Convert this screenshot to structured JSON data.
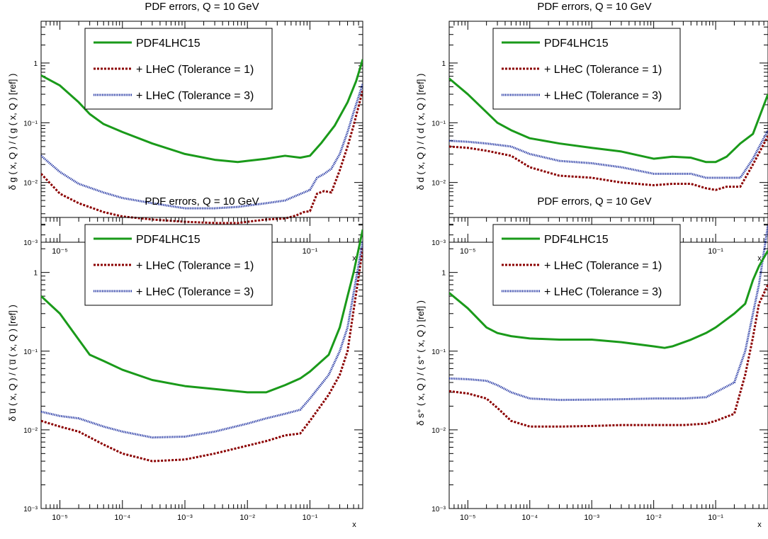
{
  "styles": {
    "pdf4lhc15": {
      "color": "#1a9a1a",
      "dash": "none",
      "width": 3
    },
    "tol1": {
      "color": "#8b0000",
      "dash": "3,2",
      "width": 3
    },
    "tol3": {
      "color": "#1c2fa0",
      "dash": "1.2,1.2",
      "width": 3
    }
  },
  "chart_data": [
    {
      "type": "line",
      "title": "PDF errors, Q = 10 GeV",
      "xlabel": "x",
      "ylabel": "δ g ( x, Q ) / ( g ( x, Q ) [ref] )",
      "xscale": "log",
      "yscale": "log",
      "xlim": [
        5e-06,
        0.7
      ],
      "ylim": [
        0.001,
        5
      ],
      "xticks": [
        "10⁻⁵",
        "10⁻⁴",
        "10⁻³",
        "10⁻²",
        "10⁻¹"
      ],
      "yticks": [
        "10⁻³",
        "10⁻²",
        "10⁻¹",
        "1"
      ],
      "legend": [
        "PDF4LHC15",
        "+ LHeC (Tolerance = 1)",
        "+ LHeC (Tolerance = 3)"
      ],
      "series": [
        {
          "name": "PDF4LHC15",
          "style": "pdf4lhc15",
          "x": [
            5e-06,
            1e-05,
            2e-05,
            3e-05,
            5e-05,
            0.0001,
            0.0003,
            0.001,
            0.003,
            0.007,
            0.01,
            0.02,
            0.04,
            0.07,
            0.1,
            0.15,
            0.25,
            0.4,
            0.55,
            0.7
          ],
          "y": [
            0.62,
            0.42,
            0.22,
            0.14,
            0.095,
            0.07,
            0.045,
            0.03,
            0.024,
            0.022,
            0.023,
            0.025,
            0.028,
            0.026,
            0.028,
            0.045,
            0.09,
            0.22,
            0.5,
            1.15
          ]
        },
        {
          "name": "+ LHeC (Tolerance = 1)",
          "style": "tol1",
          "x": [
            5e-06,
            1e-05,
            2e-05,
            5e-05,
            0.0001,
            0.0003,
            0.001,
            0.003,
            0.007,
            0.01,
            0.02,
            0.04,
            0.06,
            0.08,
            0.1,
            0.13,
            0.17,
            0.22,
            0.3,
            0.4,
            0.5,
            0.7
          ],
          "y": [
            0.014,
            0.0065,
            0.0045,
            0.0032,
            0.0027,
            0.0024,
            0.0022,
            0.0021,
            0.0021,
            0.0022,
            0.0024,
            0.0025,
            0.0028,
            0.0032,
            0.0033,
            0.0065,
            0.0072,
            0.0068,
            0.016,
            0.04,
            0.09,
            0.35
          ]
        },
        {
          "name": "+ LHeC (Tolerance = 3)",
          "style": "tol3",
          "x": [
            5e-06,
            1e-05,
            2e-05,
            5e-05,
            0.0001,
            0.0003,
            0.001,
            0.003,
            0.007,
            0.01,
            0.02,
            0.04,
            0.06,
            0.08,
            0.1,
            0.13,
            0.17,
            0.22,
            0.3,
            0.4,
            0.5,
            0.7
          ],
          "y": [
            0.028,
            0.015,
            0.0095,
            0.0068,
            0.0055,
            0.0045,
            0.0037,
            0.0037,
            0.0039,
            0.0041,
            0.0045,
            0.005,
            0.006,
            0.0068,
            0.0075,
            0.012,
            0.014,
            0.017,
            0.03,
            0.07,
            0.15,
            0.45
          ]
        }
      ]
    },
    {
      "type": "line",
      "title": "PDF errors, Q = 10 GeV",
      "xlabel": "x",
      "ylabel": "δ d ( x, Q ) / ( d ( x, Q ) [ref] )",
      "xscale": "log",
      "yscale": "log",
      "xlim": [
        5e-06,
        0.7
      ],
      "ylim": [
        0.001,
        5
      ],
      "xticks": [
        "10⁻⁵",
        "10⁻⁴",
        "10⁻³",
        "10⁻²",
        "10⁻¹"
      ],
      "yticks": [
        "10⁻³",
        "10⁻²",
        "10⁻¹",
        "1"
      ],
      "legend": [
        "PDF4LHC15",
        "+ LHeC (Tolerance = 1)",
        "+ LHeC (Tolerance = 3)"
      ],
      "series": [
        {
          "name": "PDF4LHC15",
          "style": "pdf4lhc15",
          "x": [
            5e-06,
            1e-05,
            2e-05,
            3e-05,
            5e-05,
            0.0001,
            0.0003,
            0.001,
            0.003,
            0.01,
            0.02,
            0.04,
            0.07,
            0.1,
            0.15,
            0.25,
            0.4,
            0.7
          ],
          "y": [
            0.55,
            0.3,
            0.15,
            0.1,
            0.075,
            0.055,
            0.045,
            0.038,
            0.033,
            0.025,
            0.027,
            0.026,
            0.022,
            0.022,
            0.027,
            0.045,
            0.065,
            0.3
          ]
        },
        {
          "name": "+ LHeC (Tolerance = 1)",
          "style": "tol1",
          "x": [
            5e-06,
            1e-05,
            2e-05,
            5e-05,
            0.0001,
            0.0003,
            0.001,
            0.003,
            0.01,
            0.02,
            0.04,
            0.07,
            0.1,
            0.15,
            0.25,
            0.4,
            0.7
          ],
          "y": [
            0.04,
            0.038,
            0.034,
            0.028,
            0.018,
            0.013,
            0.012,
            0.01,
            0.009,
            0.0095,
            0.0095,
            0.008,
            0.0075,
            0.0085,
            0.0085,
            0.02,
            0.06
          ]
        },
        {
          "name": "+ LHeC (Tolerance = 3)",
          "style": "tol3",
          "x": [
            5e-06,
            1e-05,
            2e-05,
            5e-05,
            0.0001,
            0.0003,
            0.001,
            0.003,
            0.01,
            0.02,
            0.04,
            0.07,
            0.1,
            0.15,
            0.25,
            0.4,
            0.7
          ],
          "y": [
            0.05,
            0.048,
            0.045,
            0.04,
            0.03,
            0.023,
            0.021,
            0.018,
            0.014,
            0.014,
            0.014,
            0.012,
            0.012,
            0.012,
            0.012,
            0.025,
            0.075
          ]
        }
      ]
    },
    {
      "type": "line",
      "title": "PDF errors, Q = 10 GeV",
      "xlabel": "x",
      "ylabel": "δ u̅ ( x, Q ) / ( u̅ ( x, Q ) [ref] )",
      "xscale": "log",
      "yscale": "log",
      "xlim": [
        5e-06,
        0.7
      ],
      "ylim": [
        0.001,
        5
      ],
      "xticks": [
        "10⁻⁵",
        "10⁻⁴",
        "10⁻³",
        "10⁻²",
        "10⁻¹"
      ],
      "yticks": [
        "10⁻³",
        "10⁻²",
        "10⁻¹",
        "1"
      ],
      "legend": [
        "PDF4LHC15",
        "+ LHeC (Tolerance = 1)",
        "+ LHeC (Tolerance = 3)"
      ],
      "series": [
        {
          "name": "PDF4LHC15",
          "style": "pdf4lhc15",
          "x": [
            5e-06,
            1e-05,
            2e-05,
            3e-05,
            5e-05,
            0.0001,
            0.0003,
            0.001,
            0.003,
            0.01,
            0.02,
            0.04,
            0.07,
            0.1,
            0.2,
            0.3,
            0.4,
            0.5,
            0.7
          ],
          "y": [
            0.5,
            0.3,
            0.14,
            0.09,
            0.075,
            0.058,
            0.043,
            0.036,
            0.033,
            0.03,
            0.03,
            0.037,
            0.045,
            0.055,
            0.09,
            0.2,
            0.5,
            1.0,
            3.5
          ]
        },
        {
          "name": "+ LHeC (Tolerance = 1)",
          "style": "tol1",
          "x": [
            5e-06,
            1e-05,
            2e-05,
            5e-05,
            0.0001,
            0.0003,
            0.001,
            0.003,
            0.01,
            0.02,
            0.04,
            0.07,
            0.1,
            0.2,
            0.3,
            0.4,
            0.7
          ],
          "y": [
            0.013,
            0.011,
            0.0095,
            0.0065,
            0.005,
            0.004,
            0.0042,
            0.005,
            0.0063,
            0.0072,
            0.0085,
            0.009,
            0.013,
            0.028,
            0.05,
            0.1,
            2.0
          ]
        },
        {
          "name": "+ LHeC (Tolerance = 3)",
          "style": "tol3",
          "x": [
            5e-06,
            1e-05,
            2e-05,
            5e-05,
            0.0001,
            0.0003,
            0.001,
            0.003,
            0.01,
            0.02,
            0.04,
            0.07,
            0.1,
            0.2,
            0.3,
            0.4,
            0.7
          ],
          "y": [
            0.017,
            0.015,
            0.014,
            0.011,
            0.0095,
            0.008,
            0.0082,
            0.0095,
            0.012,
            0.014,
            0.016,
            0.018,
            0.025,
            0.05,
            0.1,
            0.2,
            2.5
          ]
        }
      ]
    },
    {
      "type": "line",
      "title": "PDF errors, Q = 10 GeV",
      "xlabel": "x",
      "ylabel": "δ s⁺ ( x, Q ) / ( s⁺ ( x, Q ) [ref] )",
      "xscale": "log",
      "yscale": "log",
      "xlim": [
        5e-06,
        0.7
      ],
      "ylim": [
        0.001,
        5
      ],
      "xticks": [
        "10⁻⁵",
        "10⁻⁴",
        "10⁻³",
        "10⁻²",
        "10⁻¹"
      ],
      "yticks": [
        "10⁻³",
        "10⁻²",
        "10⁻¹",
        "1"
      ],
      "legend": [
        "PDF4LHC15",
        "+ LHeC (Tolerance = 1)",
        "+ LHeC (Tolerance = 3)"
      ],
      "series": [
        {
          "name": "PDF4LHC15",
          "style": "pdf4lhc15",
          "x": [
            5e-06,
            1e-05,
            2e-05,
            3e-05,
            5e-05,
            0.0001,
            0.0003,
            0.001,
            0.003,
            0.01,
            0.015,
            0.02,
            0.04,
            0.07,
            0.1,
            0.2,
            0.3,
            0.4,
            0.5,
            0.7
          ],
          "y": [
            0.55,
            0.35,
            0.2,
            0.17,
            0.155,
            0.145,
            0.14,
            0.14,
            0.13,
            0.115,
            0.11,
            0.115,
            0.14,
            0.17,
            0.2,
            0.3,
            0.4,
            0.8,
            1.2,
            1.9
          ]
        },
        {
          "name": "+ LHeC (Tolerance = 1)",
          "style": "tol1",
          "x": [
            5e-06,
            1e-05,
            2e-05,
            3e-05,
            5e-05,
            0.0001,
            0.0003,
            0.001,
            0.003,
            0.01,
            0.03,
            0.07,
            0.1,
            0.2,
            0.3,
            0.4,
            0.5,
            0.7
          ],
          "y": [
            0.031,
            0.029,
            0.025,
            0.019,
            0.013,
            0.011,
            0.011,
            0.0112,
            0.0115,
            0.0115,
            0.0115,
            0.012,
            0.013,
            0.016,
            0.05,
            0.15,
            0.4,
            0.7
          ]
        },
        {
          "name": "+ LHeC (Tolerance = 3)",
          "style": "tol3",
          "x": [
            5e-06,
            1e-05,
            2e-05,
            3e-05,
            5e-05,
            0.0001,
            0.0003,
            0.001,
            0.003,
            0.01,
            0.03,
            0.07,
            0.1,
            0.2,
            0.3,
            0.4,
            0.5,
            0.7
          ],
          "y": [
            0.045,
            0.044,
            0.042,
            0.037,
            0.03,
            0.025,
            0.024,
            0.0242,
            0.0245,
            0.025,
            0.025,
            0.026,
            0.03,
            0.04,
            0.1,
            0.3,
            0.7,
            4.0
          ]
        }
      ]
    }
  ]
}
